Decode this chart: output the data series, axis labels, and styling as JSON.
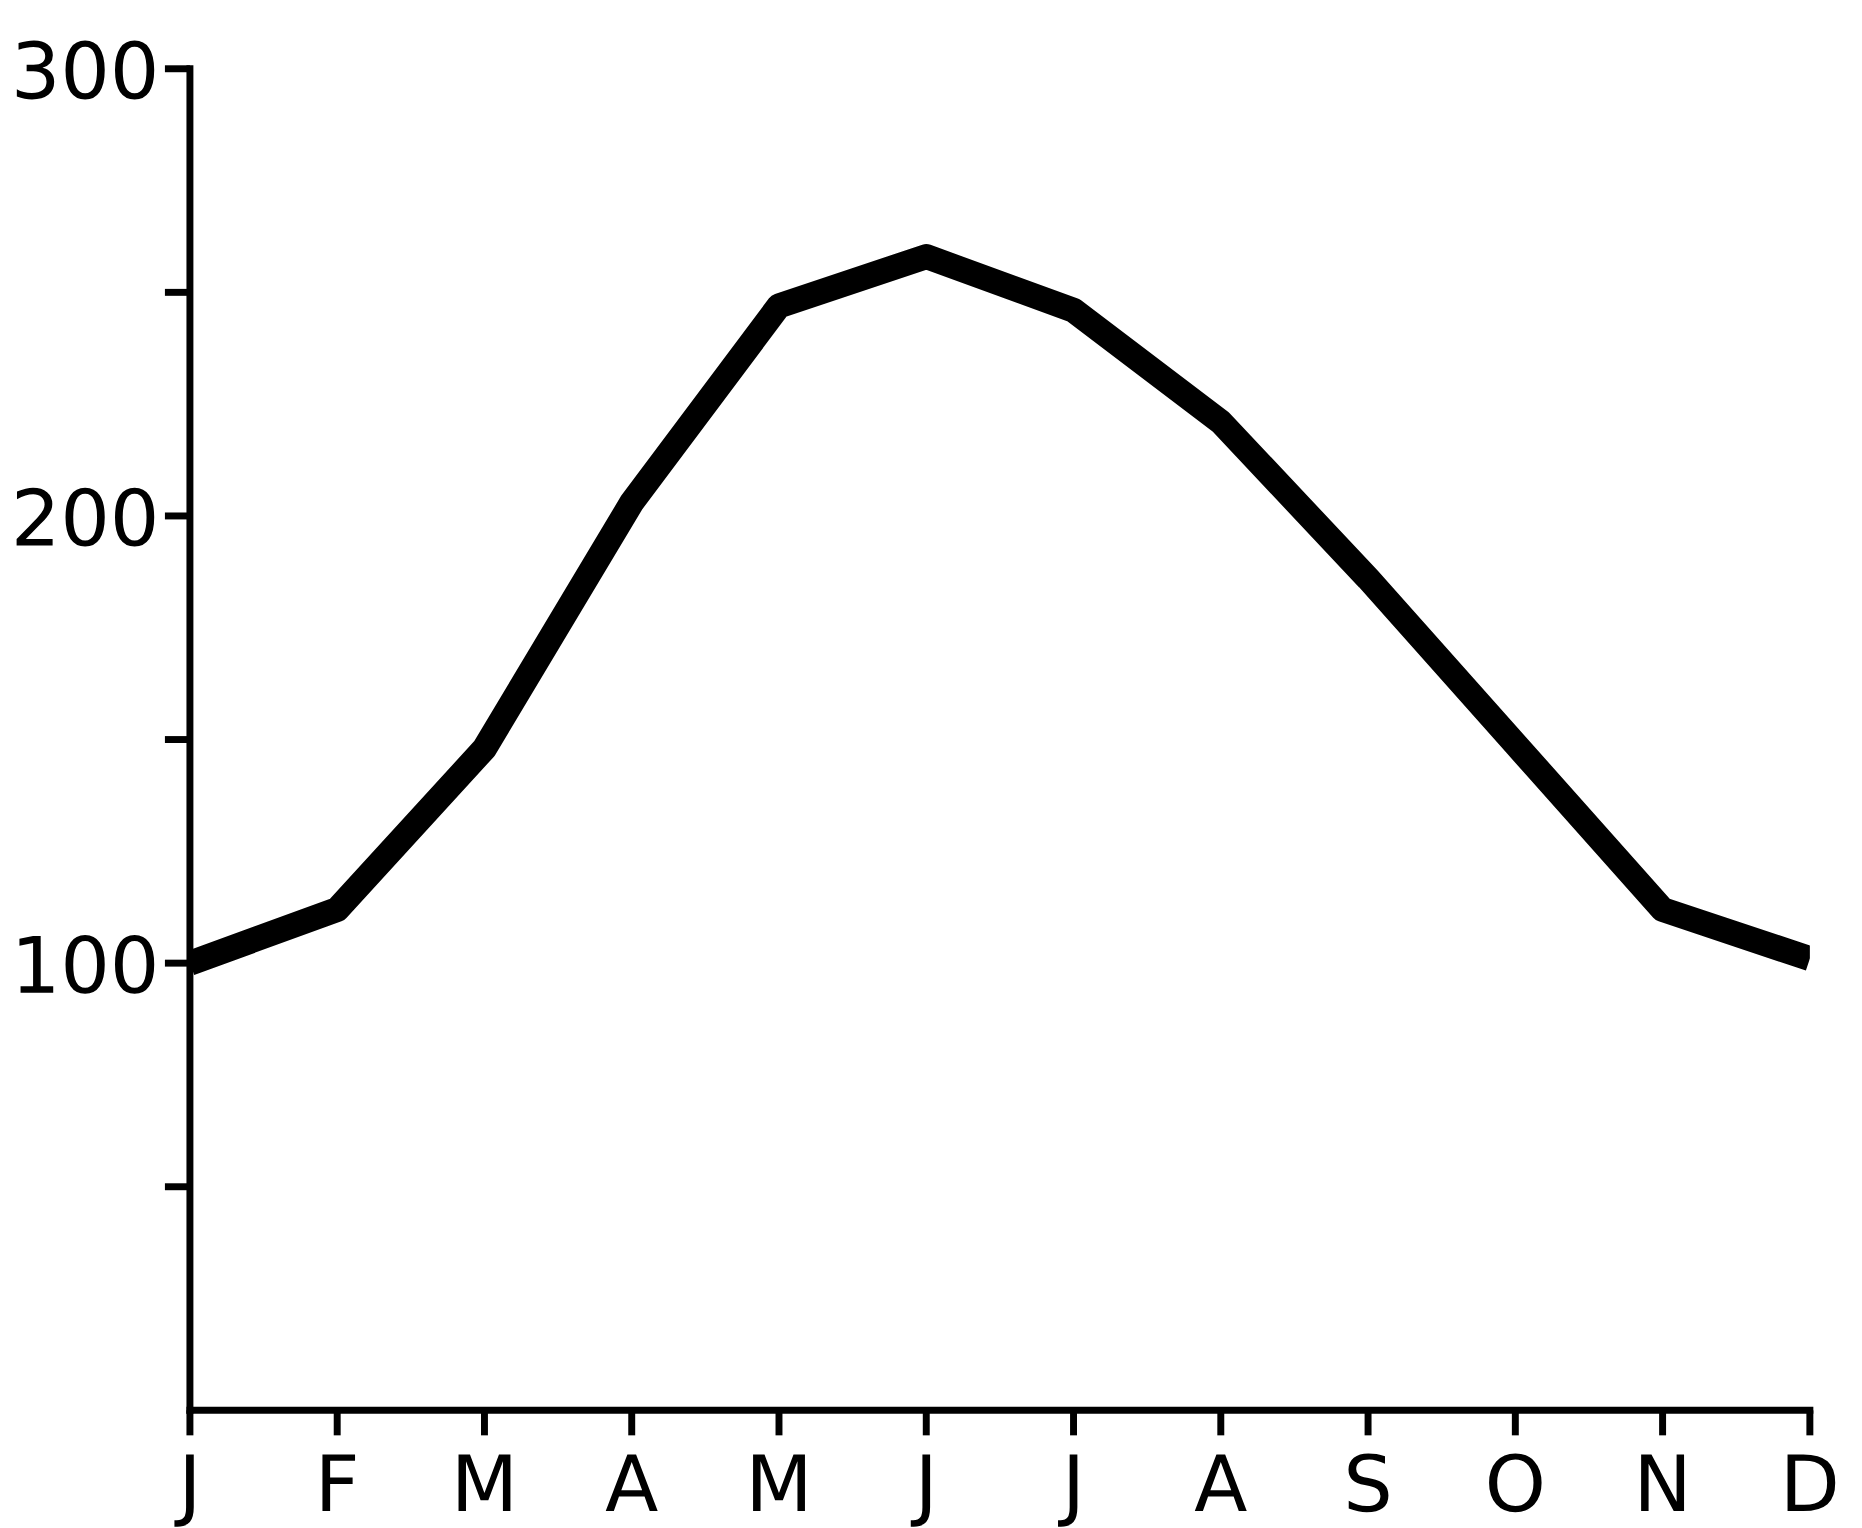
{
  "chart_data": {
    "type": "line",
    "categories": [
      "J",
      "F",
      "M",
      "A",
      "M",
      "J",
      "J",
      "A",
      "S",
      "O",
      "N",
      "D"
    ],
    "series": [
      {
        "color": "#000000",
        "values": [
          100,
          112,
          148,
          203,
          247,
          258,
          246,
          221,
          186,
          149,
          112,
          101
        ]
      }
    ],
    "ylim": [
      0,
      300
    ],
    "yticks": [
      {
        "value": 50,
        "label": null
      },
      100,
      {
        "value": 150,
        "label": null
      },
      200,
      {
        "value": 250,
        "label": null
      },
      300
    ],
    "grid": false,
    "legend": false,
    "marker": "none",
    "line_style": "solid"
  }
}
